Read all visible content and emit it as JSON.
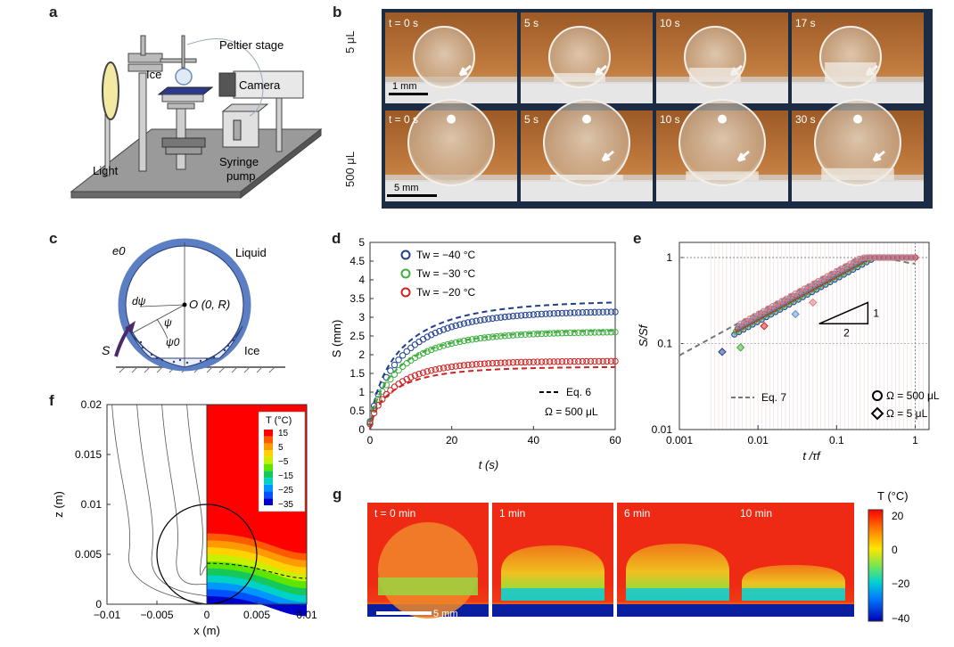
{
  "panel_labels": {
    "a": "a",
    "b": "b",
    "c": "c",
    "d": "d",
    "e": "e",
    "f": "f",
    "g": "g"
  },
  "panel_a": {
    "labels": {
      "peltier": "Peltier stage",
      "ice": "Ice",
      "camera": "Camera",
      "light": "Light",
      "pump_line1": "Syringe",
      "pump_line2": "pump"
    }
  },
  "panel_b": {
    "row1_label": "5 μL",
    "row2_label": "500 μL",
    "row1_times": [
      "t = 0 s",
      "5 s",
      "10 s",
      "17 s"
    ],
    "row2_times": [
      "t = 0 s",
      "5 s",
      "10 s",
      "30 s"
    ],
    "scale1": "1 mm",
    "scale2": "5 mm"
  },
  "panel_c": {
    "e0": "e0",
    "liquid": "Liquid",
    "dpsi": "dψ",
    "origin": "O (0, R)",
    "psi": "ψ",
    "psi0": "ψ0",
    "ice": "Ice",
    "S": "S"
  },
  "panel_f": {
    "xlabel": "x (m)",
    "ylabel": "z (m)",
    "xticks": [
      "−0.01",
      "−0.005",
      "0",
      "0.005",
      "0.01"
    ],
    "yticks": [
      "0",
      "0.005",
      "0.01",
      "0.015",
      "0.02"
    ],
    "legend_title": "T (°C)",
    "legend_ticks": [
      "15",
      "5",
      "−5",
      "−15",
      "−25",
      "−35"
    ],
    "colors": [
      "#ff0000",
      "#ff5a00",
      "#ff9a00",
      "#ffd200",
      "#c8f000",
      "#5ee600",
      "#14c85a",
      "#00d2c8",
      "#0096ff",
      "#0050ff",
      "#0000cc"
    ]
  },
  "panel_g": {
    "times": [
      "t = 0 min",
      "1 min",
      "6 min",
      "10 min"
    ],
    "scale": "5 mm",
    "cbar_title": "T (°C)",
    "cbar_ticks": [
      "20",
      "0",
      "−20",
      "−40"
    ]
  },
  "chart_data": [
    {
      "id": "d",
      "type": "scatter",
      "xlabel": "t (s)",
      "ylabel": "S (mm)",
      "xlim": [
        0,
        60
      ],
      "ylim": [
        0,
        5
      ],
      "xticks": [
        0,
        20,
        40,
        60
      ],
      "yticks": [
        0,
        0.5,
        1,
        1.5,
        2,
        2.5,
        3,
        3.5,
        4,
        4.5,
        5
      ],
      "series": [
        {
          "name": "Tw = −40 °C",
          "color": "#1f3f8f",
          "plateau": 3.17,
          "tau": 8.5,
          "model_end": 3.45
        },
        {
          "name": "Tw = −30 °C",
          "color": "#3fae3f",
          "plateau": 2.62,
          "tau": 8.0,
          "model_end": 2.68
        },
        {
          "name": "Tw = −20 °C",
          "color": "#d02020",
          "plateau": 1.83,
          "tau": 6.5,
          "model_end": 1.68
        }
      ],
      "legend": [
        "Tw = −40 °C",
        "Tw = −30 °C",
        "Tw = −20 °C"
      ],
      "annotations": [
        "Eq. 6",
        "Ω = 500 μL"
      ]
    },
    {
      "id": "e",
      "type": "scatter",
      "xscale": "log",
      "yscale": "log",
      "xlabel": "t /τf",
      "ylabel": "S/Sf",
      "xlim": [
        0.001,
        1.5
      ],
      "ylim": [
        0.01,
        1.5
      ],
      "xticks": [
        "0.001",
        "0.01",
        "0.1",
        "1"
      ],
      "yticks": [
        "0.01",
        "0.1",
        "1"
      ],
      "slope_triangle": {
        "rise": "1",
        "run": "2"
      },
      "legend": [
        "Eq. 7",
        "Ω = 500 μL",
        "Ω = 5 μL"
      ]
    }
  ]
}
